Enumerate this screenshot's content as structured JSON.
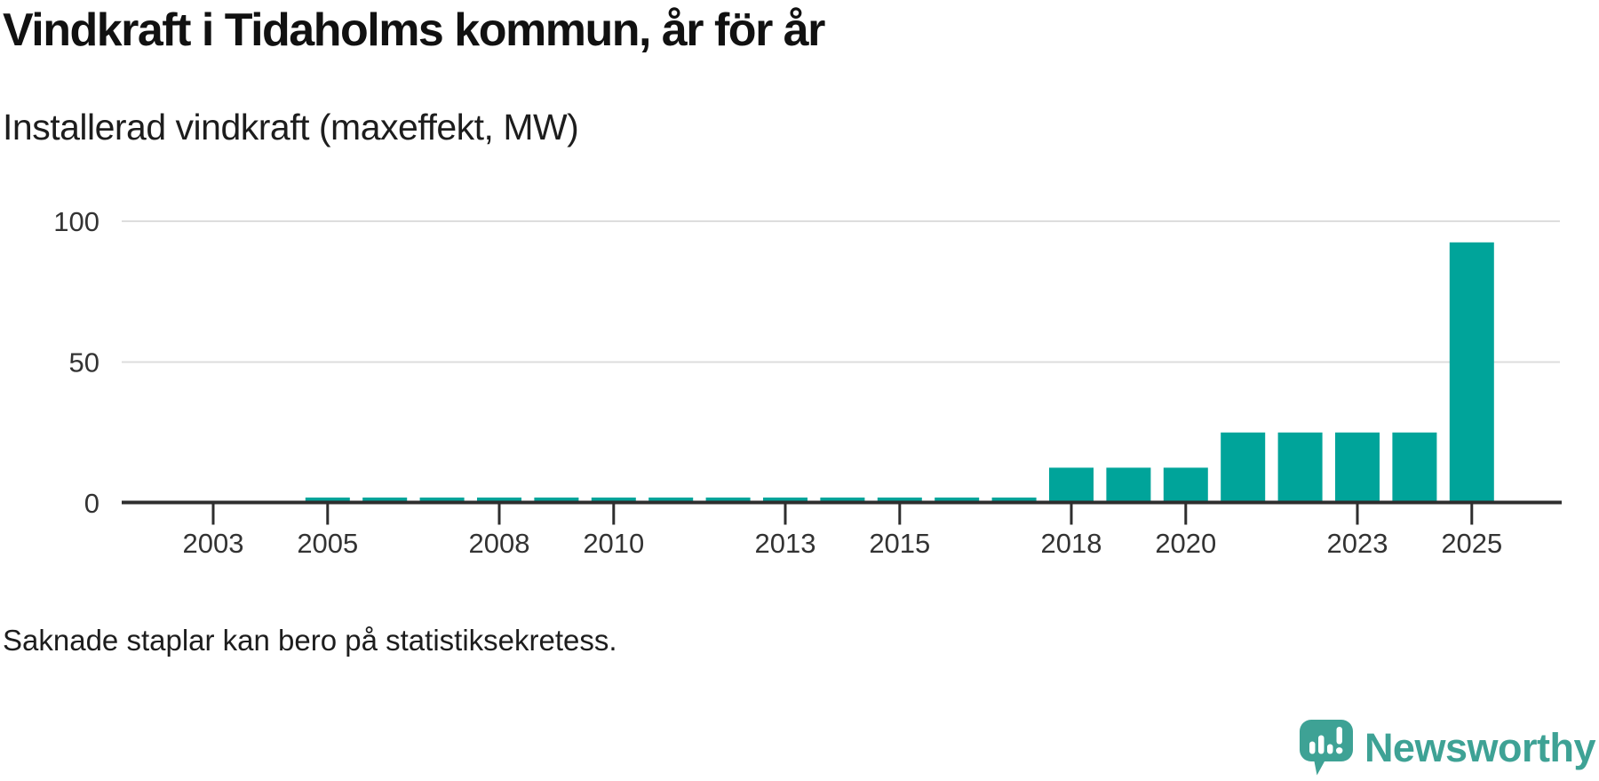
{
  "header": {
    "title": "Vindkraft i Tidaholms kommun, år för år",
    "subtitle": "Installerad vindkraft (maxeffekt, MW)"
  },
  "footer": {
    "note": "Saknade staplar kan bero på statistiksekretess.",
    "logo_text": "Newsworthy",
    "logo_icon": "newsworthy-speech-bubble-bar-chart-icon"
  },
  "colors": {
    "bar": "#00a49a",
    "axis": "#2e2e2e",
    "gridline": "#dddddd",
    "tick_label": "#333333",
    "logo": "#3ea295"
  },
  "chart_data": {
    "type": "bar",
    "title": "Vindkraft i Tidaholms kommun, år för år",
    "ylabel": "Installerad vindkraft (maxeffekt, MW)",
    "unit": "MW",
    "years": [
      2002,
      2003,
      2004,
      2005,
      2006,
      2007,
      2008,
      2009,
      2010,
      2011,
      2012,
      2013,
      2014,
      2015,
      2016,
      2017,
      2018,
      2019,
      2020,
      2021,
      2022,
      2023,
      2024,
      2025
    ],
    "values": [
      null,
      null,
      null,
      1.9,
      1.9,
      1.9,
      1.9,
      1.9,
      1.9,
      1.9,
      1.9,
      1.9,
      1.9,
      1.9,
      1.9,
      1.9,
      12.5,
      12.5,
      12.5,
      25,
      25,
      25,
      25,
      92.5
    ],
    "missing_years_note": "Saknade staplar kan bero på statistiksekretess.",
    "xticks": [
      2003,
      2005,
      2008,
      2010,
      2013,
      2015,
      2018,
      2020,
      2023,
      2025
    ],
    "yticks": [
      0,
      50,
      100
    ],
    "ylim": [
      0,
      100
    ],
    "grid": "horizontal",
    "legend": "none"
  }
}
